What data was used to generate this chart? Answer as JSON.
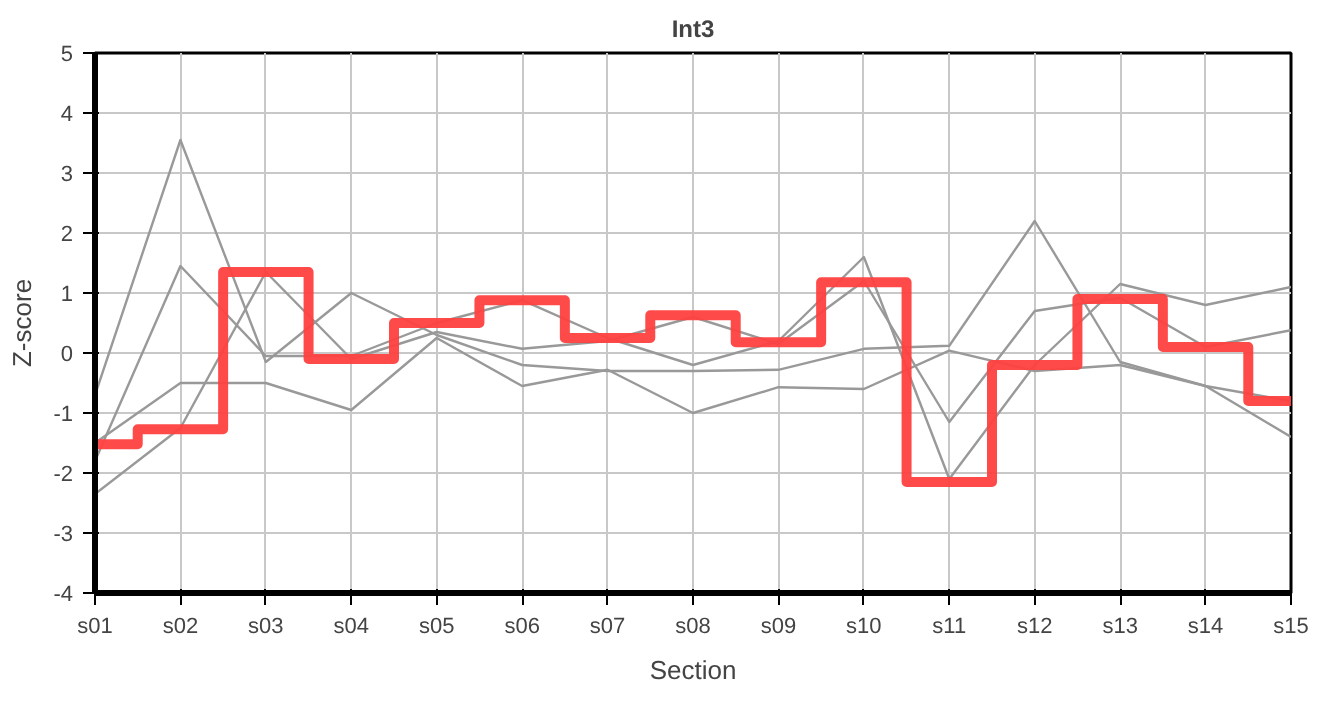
{
  "chart_data": {
    "type": "line",
    "title": "Int3",
    "xlabel": "Section",
    "ylabel": "Z-score",
    "categories": [
      "s01",
      "s02",
      "s03",
      "s04",
      "s05",
      "s06",
      "s07",
      "s08",
      "s09",
      "s10",
      "s11",
      "s12",
      "s13",
      "s14",
      "s15"
    ],
    "ylim": [
      -4,
      5
    ],
    "yticks": [
      -4,
      -3,
      -2,
      -1,
      0,
      1,
      2,
      3,
      4,
      5
    ],
    "grid": true,
    "marker": "none",
    "line_style": "solid",
    "series": [
      {
        "color": "#999999",
        "values": [
          -0.7,
          3.55,
          -0.15,
          1.0,
          0.3,
          -0.2,
          -0.3,
          -0.3,
          -0.28,
          0.07,
          0.12,
          2.2,
          -0.15,
          -0.55,
          -1.4
        ]
      },
      {
        "color": "#999999",
        "values": [
          -1.8,
          1.45,
          -0.05,
          -0.05,
          0.5,
          0.88,
          0.25,
          -0.2,
          0.2,
          1.6,
          -2.1,
          -0.2,
          1.15,
          0.8,
          1.1
        ]
      },
      {
        "color": "#999999",
        "values": [
          -2.35,
          -1.25,
          1.35,
          -0.1,
          0.35,
          0.07,
          0.2,
          0.6,
          0.15,
          1.2,
          -1.15,
          0.7,
          0.92,
          0.1,
          0.38
        ]
      },
      {
        "color": "#999999",
        "values": [
          -1.5,
          -0.5,
          -0.5,
          -0.95,
          0.25,
          -0.55,
          -0.28,
          -1.0,
          -0.57,
          -0.6,
          0.04,
          -0.3,
          -0.2,
          -0.55,
          -0.8
        ]
      },
      {
        "type": "step",
        "color": "#ff4040",
        "values": [
          -1.52,
          -1.27,
          1.35,
          -0.1,
          0.5,
          0.88,
          0.25,
          0.63,
          0.18,
          1.18,
          -2.15,
          -0.2,
          0.9,
          0.1,
          -0.8
        ]
      }
    ]
  }
}
